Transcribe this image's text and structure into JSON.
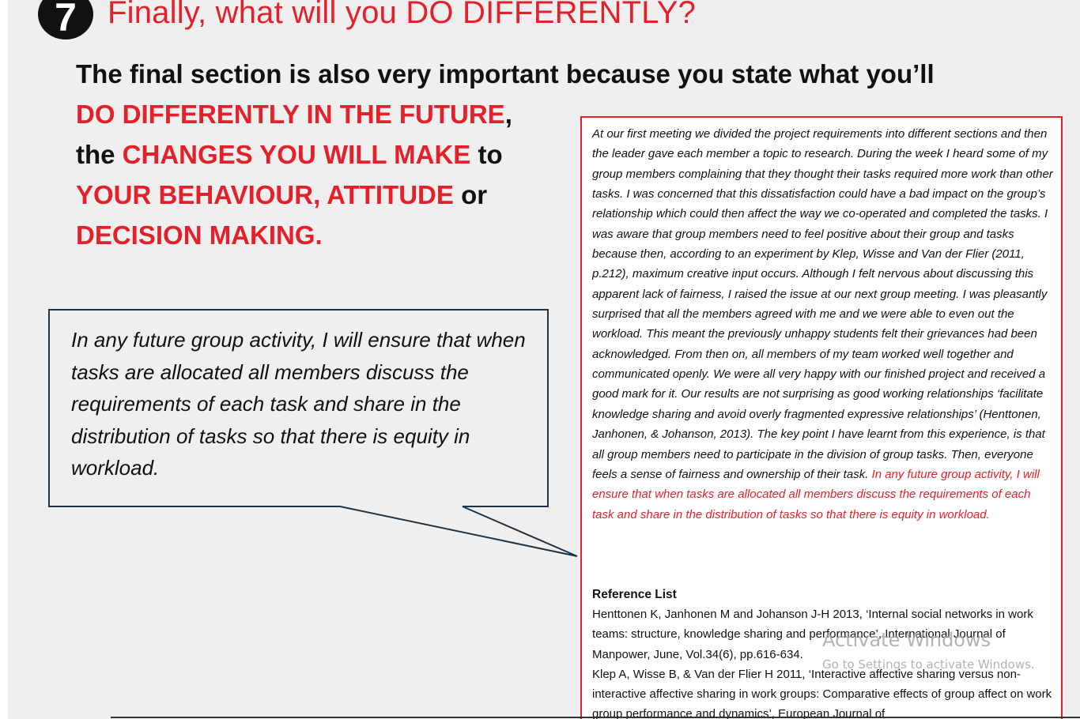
{
  "slide": {
    "step_number": "7",
    "title": "Finally, what will you DO DIFFERENTLY?",
    "intro": {
      "line1": "The final section is also very important because you state what you’ll",
      "highlight1": "DO DIFFERENTLY IN THE FUTURE",
      "comma": ",",
      "the": "the",
      "highlight2": "CHANGES YOU WILL MAKE",
      "to": "to",
      "highlight3": "YOUR BEHAVIOUR, ATTITUDE",
      "or": "or",
      "highlight4": "DECISION MAKING."
    },
    "callout": "In any future group activity, I will ensure that when tasks are allocated all members discuss the requirements of each task and share in the distribution of tasks so that there is equity in workload."
  },
  "essay": {
    "body": "At our first meeting we divided the project requirements into different sections and then the leader gave each member a topic to research.  During the week I heard some of my group members complaining that they thought their tasks required more work than other tasks. I was concerned that this dissatisfaction could have a bad impact on the group’s relationship which could then affect the way we co-operated and completed the tasks. I was aware that group members need to feel positive about their group and tasks because then, according to an experiment by Klep, Wisse and Van der Flier (2011, p.212), maximum creative input occurs. Although I felt nervous about discussing this apparent lack of fairness, I raised the issue at our next group meeting. I was pleasantly surprised that all the members agreed with me and we were able to even out the workload.  This meant the previously unhappy students felt their grievances had been acknowledged. From then on, all members of my team worked well together and communicated openly.  We were all very happy with our finished project and received a good mark for it.  Our results are not surprising as good working relationships ‘facilitate knowledge sharing and avoid overly fragmented expressive relationships’ (Henttonen, Janhonen, & Johanson, 2013). The key point I have learnt from this experience, is that all group members need to participate in the division of group tasks. Then, everyone feels a sense of fairness and ownership of their task.",
    "highlight": "In any future group activity, I will ensure that when tasks are allocated all members discuss the requirements of each task and share in the distribution of tasks so that there is equity in workload.",
    "reference_heading": "Reference List",
    "references": [
      "Henttonen K, Janhonen M and Johanson J-H 2013, ‘Internal social networks in work teams: structure, knowledge sharing and performance’, International Journal of Manpower, June, Vol.34(6), pp.616-634.",
      "Klep A, Wisse B, & Van der Flier H 2011, ‘Interactive affective sharing versus non-interactive affective sharing in work groups: Comparative effects of group affect on work group performance and dynamics’, European Journal of"
    ]
  },
  "watermark": {
    "title": "Activate Windows",
    "subtitle": "Go to Settings to activate Windows."
  },
  "colors": {
    "accent_red": "#e3212a",
    "text": "#111111",
    "slide_background": "#efefef",
    "callout_border": "#1f3344"
  }
}
